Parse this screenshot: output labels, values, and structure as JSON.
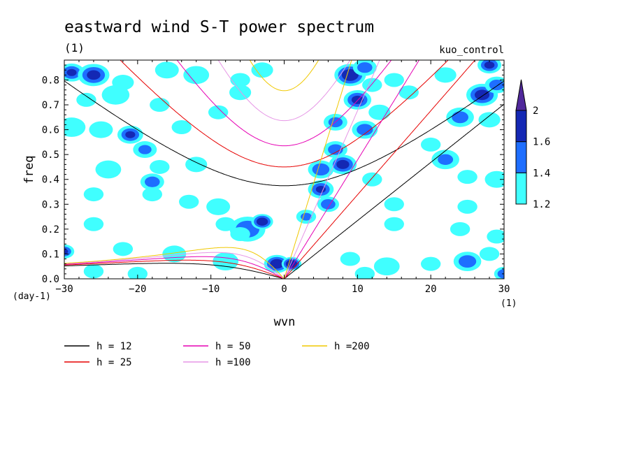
{
  "chart_data": {
    "type": "heatmap",
    "title": "eastward wind S-T power spectrum",
    "subtitle_left": "(1)",
    "subtitle_right": "kuo_control",
    "xlabel": "wvn",
    "xunits": "(1)",
    "ylabel": "freq",
    "yunits": "(day-1)",
    "xlim": [
      -30,
      30
    ],
    "ylim": [
      0,
      0.88
    ],
    "xticks": [
      "−30",
      "−20",
      "−10",
      "0",
      "10",
      "20",
      "30"
    ],
    "xtick_values": [
      -30,
      -20,
      -10,
      0,
      10,
      20,
      30
    ],
    "yticks": [
      "0.0",
      "0.1",
      "0.2",
      "0.3",
      "0.4",
      "0.5",
      "0.6",
      "0.7",
      "0.8"
    ],
    "ytick_values": [
      0,
      0.1,
      0.2,
      0.3,
      0.4,
      0.5,
      0.6,
      0.7,
      0.8
    ],
    "colorbar": {
      "levels": [
        1.2,
        1.4,
        1.6,
        2
      ],
      "labels": [
        "1.2",
        "1.4",
        "1.6",
        "2"
      ],
      "colors": [
        "#40ffff",
        "#1e6eff",
        "#1428b4",
        "#50289b"
      ]
    },
    "dispersion_curves": [
      {
        "name": "h = 12",
        "h": 12,
        "color": "#000000"
      },
      {
        "name": "h = 25",
        "h": 25,
        "color": "#e60000"
      },
      {
        "name": "h = 50",
        "h": 50,
        "color": "#e600b4"
      },
      {
        "name": "h =100",
        "h": 100,
        "color": "#e696e6"
      },
      {
        "name": "h =200",
        "h": 200,
        "color": "#f0c800"
      }
    ],
    "blobs": [
      {
        "x": -29,
        "y": 0.83,
        "r": 1.3,
        "v": 1.6
      },
      {
        "x": -26,
        "y": 0.82,
        "r": 1.6,
        "v": 1.65
      },
      {
        "x": -22,
        "y": 0.79,
        "r": 1.1,
        "v": 1.3
      },
      {
        "x": -16,
        "y": 0.84,
        "r": 1.2,
        "v": 1.3
      },
      {
        "x": -12,
        "y": 0.82,
        "r": 1.3,
        "v": 1.35
      },
      {
        "x": -6,
        "y": 0.8,
        "r": 1.0,
        "v": 1.25
      },
      {
        "x": -3,
        "y": 0.84,
        "r": 1.1,
        "v": 1.3
      },
      {
        "x": 9,
        "y": 0.82,
        "r": 1.6,
        "v": 1.8
      },
      {
        "x": 11,
        "y": 0.85,
        "r": 1.2,
        "v": 1.5
      },
      {
        "x": 15,
        "y": 0.8,
        "r": 1.0,
        "v": 1.3
      },
      {
        "x": 22,
        "y": 0.82,
        "r": 1.1,
        "v": 1.3
      },
      {
        "x": 28,
        "y": 0.86,
        "r": 1.2,
        "v": 1.65
      },
      {
        "x": -27,
        "y": 0.72,
        "r": 1.0,
        "v": 1.3
      },
      {
        "x": -23,
        "y": 0.74,
        "r": 1.4,
        "v": 1.35
      },
      {
        "x": -17,
        "y": 0.7,
        "r": 1.0,
        "v": 1.3
      },
      {
        "x": -6,
        "y": 0.75,
        "r": 1.1,
        "v": 1.35
      },
      {
        "x": 10,
        "y": 0.72,
        "r": 1.4,
        "v": 1.65
      },
      {
        "x": 12,
        "y": 0.78,
        "r": 1.0,
        "v": 1.35
      },
      {
        "x": 17,
        "y": 0.75,
        "r": 1.0,
        "v": 1.3
      },
      {
        "x": 27,
        "y": 0.74,
        "r": 1.6,
        "v": 1.7
      },
      {
        "x": 29,
        "y": 0.78,
        "r": 1.2,
        "v": 1.5
      },
      {
        "x": -29,
        "y": 0.61,
        "r": 1.4,
        "v": 1.35
      },
      {
        "x": -25,
        "y": 0.6,
        "r": 1.2,
        "v": 1.3
      },
      {
        "x": -21,
        "y": 0.58,
        "r": 1.3,
        "v": 1.6
      },
      {
        "x": -19,
        "y": 0.52,
        "r": 1.2,
        "v": 1.4
      },
      {
        "x": -14,
        "y": 0.61,
        "r": 1.0,
        "v": 1.25
      },
      {
        "x": -9,
        "y": 0.67,
        "r": 1.0,
        "v": 1.3
      },
      {
        "x": 7,
        "y": 0.63,
        "r": 1.2,
        "v": 1.45
      },
      {
        "x": 11,
        "y": 0.6,
        "r": 1.3,
        "v": 1.5
      },
      {
        "x": 13,
        "y": 0.67,
        "r": 1.1,
        "v": 1.35
      },
      {
        "x": 24,
        "y": 0.65,
        "r": 1.4,
        "v": 1.45
      },
      {
        "x": 28,
        "y": 0.64,
        "r": 1.1,
        "v": 1.35
      },
      {
        "x": 20,
        "y": 0.54,
        "r": 1.0,
        "v": 1.3
      },
      {
        "x": -24,
        "y": 0.44,
        "r": 1.3,
        "v": 1.35
      },
      {
        "x": -17,
        "y": 0.45,
        "r": 1.0,
        "v": 1.3
      },
      {
        "x": -12,
        "y": 0.46,
        "r": 1.1,
        "v": 1.35
      },
      {
        "x": -18,
        "y": 0.39,
        "r": 1.2,
        "v": 1.5
      },
      {
        "x": -26,
        "y": 0.34,
        "r": 1.0,
        "v": 1.25
      },
      {
        "x": 5,
        "y": 0.44,
        "r": 1.3,
        "v": 1.55
      },
      {
        "x": 7,
        "y": 0.52,
        "r": 1.2,
        "v": 1.5
      },
      {
        "x": 8,
        "y": 0.46,
        "r": 1.4,
        "v": 1.7
      },
      {
        "x": 22,
        "y": 0.48,
        "r": 1.4,
        "v": 1.4
      },
      {
        "x": 25,
        "y": 0.41,
        "r": 1.0,
        "v": 1.3
      },
      {
        "x": 29,
        "y": 0.4,
        "r": 1.2,
        "v": 1.35
      },
      {
        "x": 12,
        "y": 0.4,
        "r": 1.0,
        "v": 1.3
      },
      {
        "x": 5,
        "y": 0.36,
        "r": 1.3,
        "v": 1.6
      },
      {
        "x": 6,
        "y": 0.3,
        "r": 1.1,
        "v": 1.55
      },
      {
        "x": 15,
        "y": 0.3,
        "r": 1.0,
        "v": 1.3
      },
      {
        "x": 25,
        "y": 0.29,
        "r": 1.0,
        "v": 1.3
      },
      {
        "x": -13,
        "y": 0.31,
        "r": 1.0,
        "v": 1.3
      },
      {
        "x": -18,
        "y": 0.34,
        "r": 1.0,
        "v": 1.25
      },
      {
        "x": -9,
        "y": 0.29,
        "r": 1.2,
        "v": 1.35
      },
      {
        "x": -26,
        "y": 0.22,
        "r": 1.0,
        "v": 1.3
      },
      {
        "x": -8,
        "y": 0.22,
        "r": 1.0,
        "v": 1.25
      },
      {
        "x": -5,
        "y": 0.2,
        "r": 1.8,
        "v": 1.55
      },
      {
        "x": -3,
        "y": 0.23,
        "r": 1.1,
        "v": 1.8
      },
      {
        "x": -6,
        "y": 0.18,
        "r": 1.0,
        "v": 1.3
      },
      {
        "x": 3,
        "y": 0.25,
        "r": 1.0,
        "v": 1.4
      },
      {
        "x": 15,
        "y": 0.22,
        "r": 1.0,
        "v": 1.3
      },
      {
        "x": 24,
        "y": 0.2,
        "r": 1.0,
        "v": 1.3
      },
      {
        "x": 29,
        "y": 0.17,
        "r": 1.0,
        "v": 1.3
      },
      {
        "x": -30,
        "y": 0.11,
        "r": 1.0,
        "v": 1.6
      },
      {
        "x": -22,
        "y": 0.12,
        "r": 1.0,
        "v": 1.3
      },
      {
        "x": -15,
        "y": 0.1,
        "r": 1.2,
        "v": 1.3
      },
      {
        "x": -8,
        "y": 0.07,
        "r": 1.3,
        "v": 1.35
      },
      {
        "x": -1,
        "y": 0.06,
        "r": 1.3,
        "v": 1.8
      },
      {
        "x": 1,
        "y": 0.06,
        "r": 1.0,
        "v": 1.9
      },
      {
        "x": 9,
        "y": 0.08,
        "r": 1.0,
        "v": 1.3
      },
      {
        "x": 14,
        "y": 0.05,
        "r": 1.3,
        "v": 1.35
      },
      {
        "x": 20,
        "y": 0.06,
        "r": 1.0,
        "v": 1.3
      },
      {
        "x": 25,
        "y": 0.07,
        "r": 1.4,
        "v": 1.5
      },
      {
        "x": 28,
        "y": 0.1,
        "r": 1.0,
        "v": 1.3
      },
      {
        "x": -26,
        "y": 0.03,
        "r": 1.0,
        "v": 1.3
      },
      {
        "x": -20,
        "y": 0.02,
        "r": 1.0,
        "v": 1.3
      },
      {
        "x": 11,
        "y": 0.02,
        "r": 1.0,
        "v": 1.3
      },
      {
        "x": 30,
        "y": 0.02,
        "r": 1.0,
        "v": 1.55
      }
    ]
  }
}
